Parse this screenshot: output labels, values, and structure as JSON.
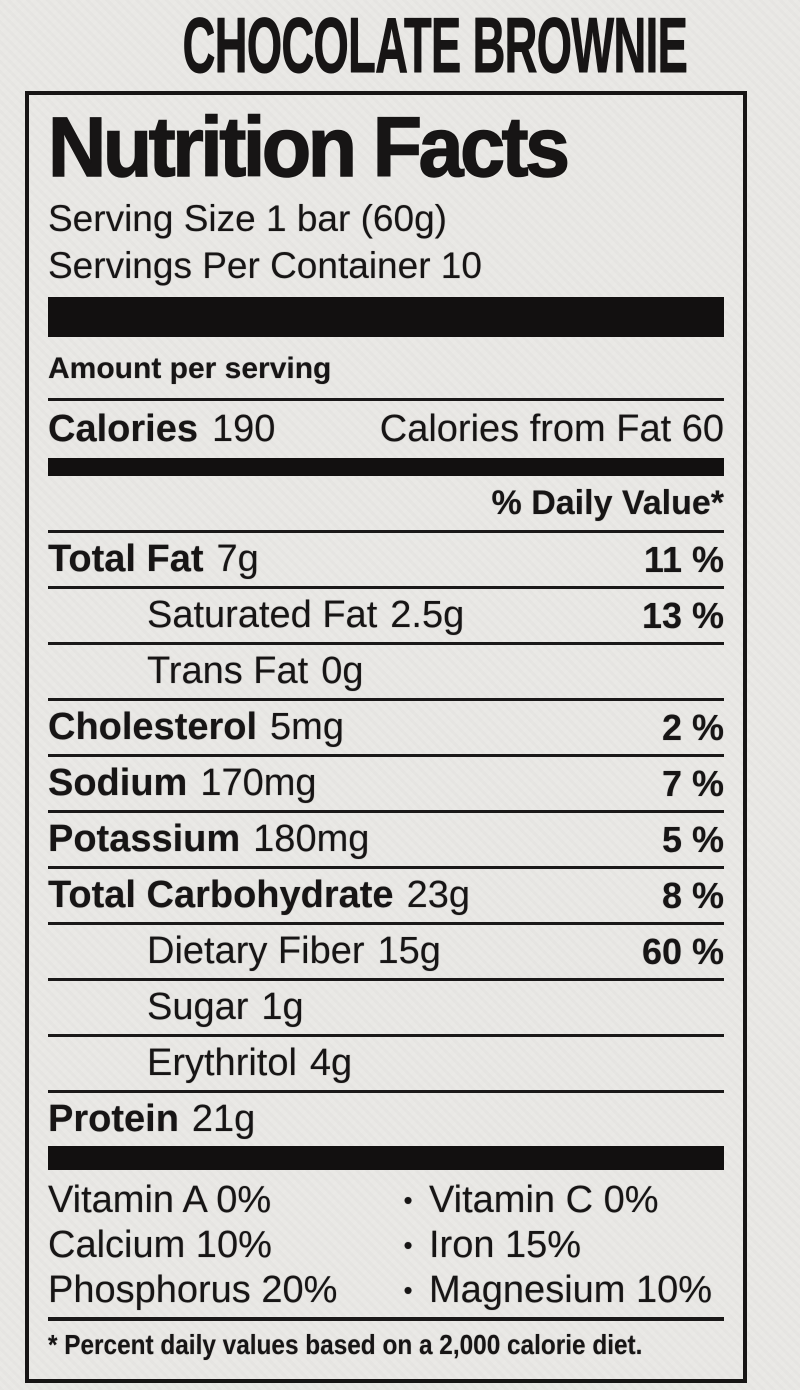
{
  "product_title": "CHOCOLATE BROWNIE",
  "label": {
    "title": "Nutrition Facts",
    "serving_size": "Serving Size 1 bar (60g)",
    "servings_per_container": "Servings Per Container 10",
    "amount_per_serving": "Amount per serving",
    "calories_label": "Calories",
    "calories_value": "190",
    "calories_from_fat": "Calories from Fat 60",
    "daily_value_header": "% Daily Value*",
    "nutrients": [
      {
        "name": "Total Fat",
        "amount": "7g",
        "dv": "11 %",
        "bold": true,
        "indent": false
      },
      {
        "name": "Saturated Fat",
        "amount": "2.5g",
        "dv": "13 %",
        "bold": false,
        "indent": true
      },
      {
        "name": "Trans Fat",
        "amount": "0g",
        "dv": "",
        "bold": false,
        "indent": true
      },
      {
        "name": "Cholesterol",
        "amount": "5mg",
        "dv": "2 %",
        "bold": true,
        "indent": false
      },
      {
        "name": "Sodium",
        "amount": "170mg",
        "dv": "7 %",
        "bold": true,
        "indent": false
      },
      {
        "name": "Potassium",
        "amount": "180mg",
        "dv": "5 %",
        "bold": true,
        "indent": false
      },
      {
        "name": "Total Carbohydrate",
        "amount": "23g",
        "dv": "8 %",
        "bold": true,
        "indent": false
      },
      {
        "name": "Dietary Fiber",
        "amount": "15g",
        "dv": "60 %",
        "bold": false,
        "indent": true
      },
      {
        "name": "Sugar",
        "amount": "1g",
        "dv": "",
        "bold": false,
        "indent": true
      },
      {
        "name": "Erythritol",
        "amount": "4g",
        "dv": "",
        "bold": false,
        "indent": true
      },
      {
        "name": "Protein",
        "amount": "21g",
        "dv": "",
        "bold": true,
        "indent": false
      }
    ],
    "bullet": "•",
    "micronutrients": [
      {
        "left": "Vitamin A 0%",
        "right": "Vitamin C 0%"
      },
      {
        "left": "Calcium 10%",
        "right": "Iron 15%"
      },
      {
        "left": "Phosphorus 20%",
        "right": "Magnesium 10%"
      }
    ],
    "footnote": "* Percent daily values based on a 2,000 calorie diet."
  },
  "colors": {
    "ink": "#171515",
    "paper": "#e9e8e5"
  }
}
